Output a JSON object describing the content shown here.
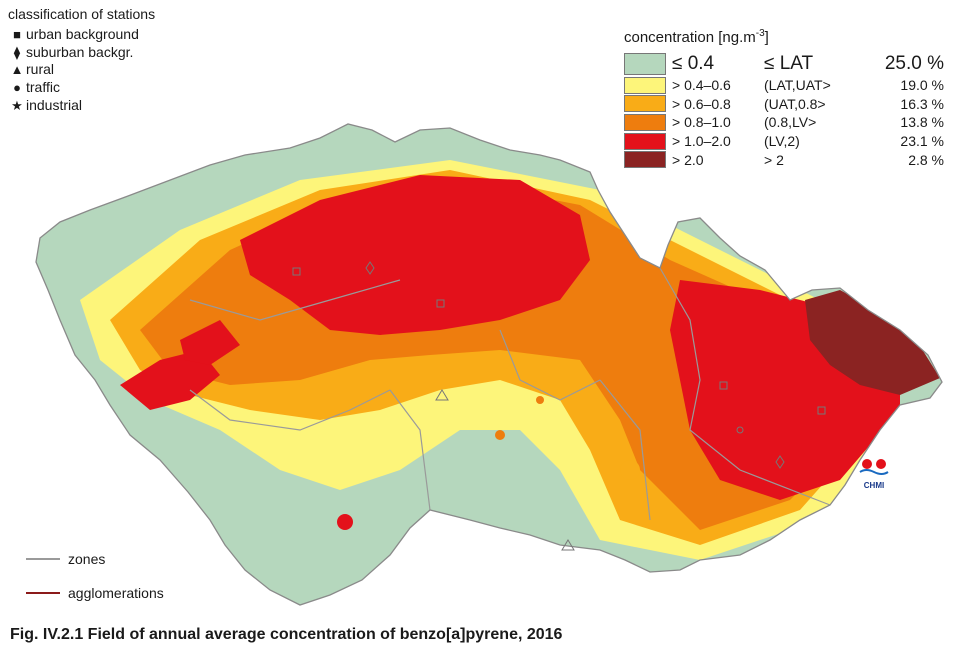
{
  "station_legend": {
    "title": "classification of stations",
    "items": [
      {
        "symbol": "■",
        "label": "urban background"
      },
      {
        "symbol": "⧫",
        "label": "suburban backgr."
      },
      {
        "symbol": "▲",
        "label": "rural"
      },
      {
        "symbol": "●",
        "label": "traffic"
      },
      {
        "symbol": "★",
        "label": "industrial"
      }
    ]
  },
  "concentration_legend": {
    "title": "concentration [ng.m",
    "title_sup": "-3",
    "title_end": "]",
    "classes": [
      {
        "range": "≤ 0.4",
        "limit": "≤ LAT",
        "percent": "25.0 %",
        "color": "#b5d7bd"
      },
      {
        "range": "> 0.4–0.6",
        "limit": "(LAT,UAT>",
        "percent": "19.0 %",
        "color": "#fdf57a"
      },
      {
        "range": "> 0.6–0.8",
        "limit": "(UAT,0.8>",
        "percent": "16.3 %",
        "color": "#f9ac17"
      },
      {
        "range": "> 0.8–1.0",
        "limit": "(0.8,LV>",
        "percent": "13.8 %",
        "color": "#ee7d0e"
      },
      {
        "range": "> 1.0–2.0",
        "limit": "(LV,2)",
        "percent": "23.1 %",
        "color": "#e3111b"
      },
      {
        "range": "> 2.0",
        "limit": " > 2",
        "percent": "2.8 %",
        "color": "#8b2322"
      }
    ]
  },
  "line_legend": {
    "zones_label": "zones",
    "zones_color": "#9a9a9a",
    "agglomerations_label": "agglomerations",
    "agglomerations_color": "#8b1a1a"
  },
  "logo_text": "CHMI",
  "caption": "Fig. IV.2.1  Field of annual average concentration of benzo[a]pyrene, 2016"
}
